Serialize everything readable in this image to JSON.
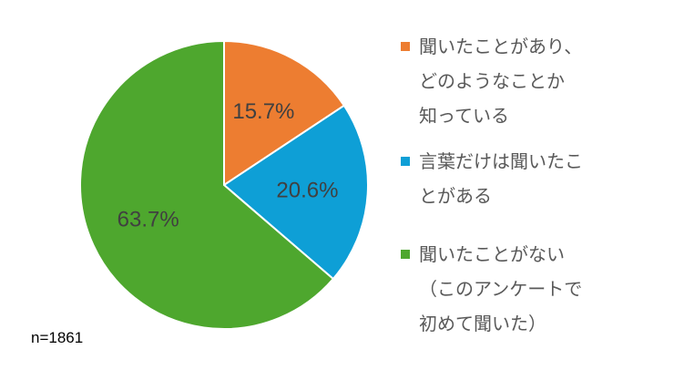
{
  "chart_data": {
    "type": "pie",
    "slices": [
      {
        "label": "聞いたことがあり、\nどのようなことか\n知っている",
        "value": 15.7,
        "display": "15.7%",
        "color": "#ED7D31"
      },
      {
        "label": "言葉だけは聞いたこ\nとがある",
        "value": 20.6,
        "display": "20.6%",
        "color": "#0E9FD6"
      },
      {
        "label": "聞いたことがない\n（このアンケートで\n初めて聞いた）",
        "value": 63.7,
        "display": "63.7%",
        "color": "#4EA72E"
      }
    ],
    "start_angle_deg": 0,
    "direction": "clockwise",
    "legend_position": "right",
    "note": "n=1861"
  }
}
